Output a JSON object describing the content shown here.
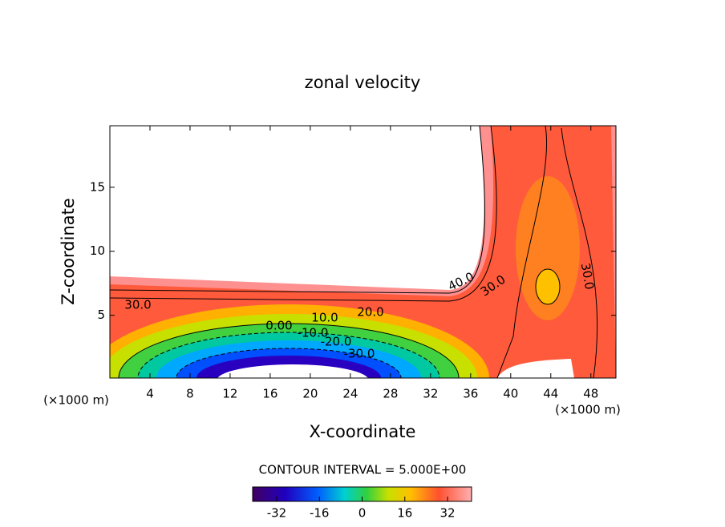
{
  "chart_data": {
    "type": "contour",
    "title": "zonal velocity",
    "x_label": "X-coordinate",
    "y_label": "Z-coordinate",
    "x_unit": "(×1000 m)",
    "xlim": [
      0,
      50.5
    ],
    "xticks": [
      4,
      8,
      12,
      16,
      20,
      24,
      28,
      32,
      36,
      40,
      44,
      48
    ],
    "ylim": [
      0.1,
      19.8
    ],
    "yticks": [
      5,
      10,
      15
    ],
    "contour_labels": [
      "30.0",
      "40.0",
      "30.0",
      "30.0",
      "20.0",
      "10.0",
      "0.00",
      "-10.0",
      "-20.0",
      "-30.0"
    ],
    "contour_interval": "CONTOUR INTERVAL = 5.000E+00",
    "colorbar": {
      "lim": [
        -41,
        41
      ],
      "ticks": [
        -32,
        -16,
        0,
        16,
        32
      ]
    }
  }
}
